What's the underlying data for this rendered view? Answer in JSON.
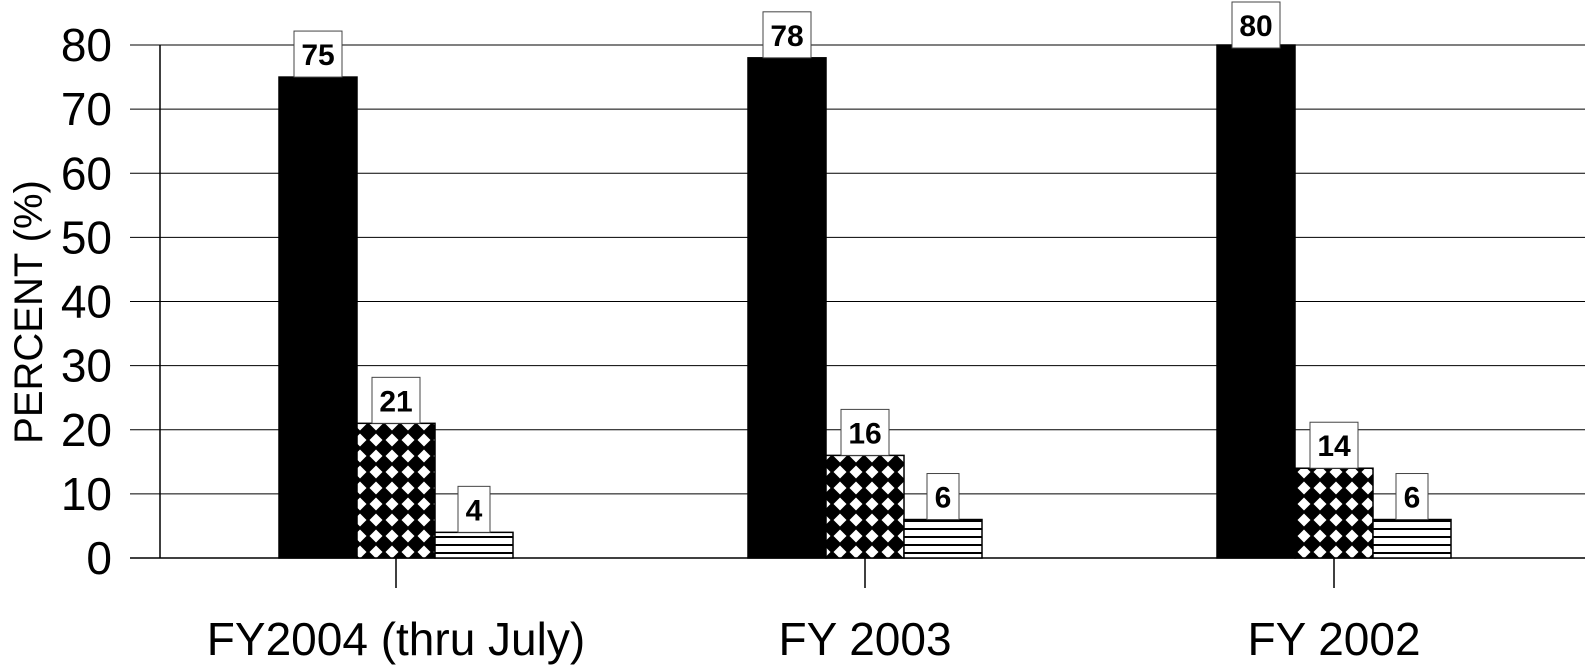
{
  "chart_data": {
    "type": "bar",
    "ylabel": "PERCENT (%)",
    "xlabel": "",
    "ylim": [
      0,
      80
    ],
    "yticks": [
      0,
      10,
      20,
      30,
      40,
      50,
      60,
      70,
      80
    ],
    "grid": true,
    "legend": "none",
    "categories": [
      "FY2004 (thru July)",
      "FY 2003",
      "FY 2002"
    ],
    "series": [
      {
        "values": [
          75,
          78,
          80
        ],
        "fill": "solid-black"
      },
      {
        "values": [
          21,
          16,
          14
        ],
        "fill": "diamond-crosshatch"
      },
      {
        "values": [
          4,
          6,
          6
        ],
        "fill": "horizontal-lines"
      }
    ],
    "colors": {
      "bar": "#000000",
      "background": "#ffffff",
      "grid": "#000000"
    }
  }
}
